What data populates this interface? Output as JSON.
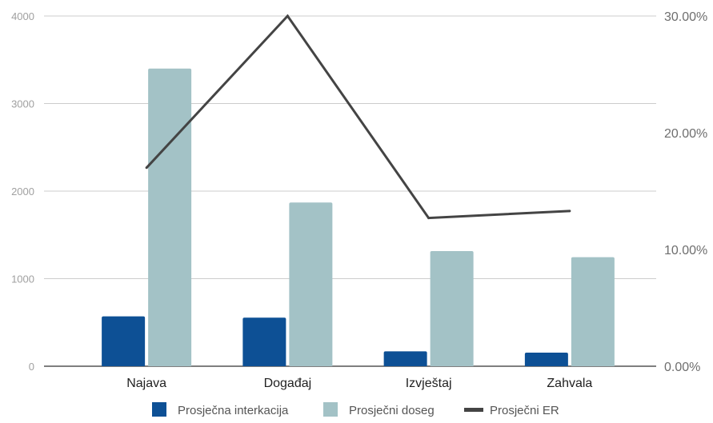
{
  "chart_data": {
    "type": "bar",
    "categories": [
      "Najava",
      "Događaj",
      "Izvještaj",
      "Zahvala"
    ],
    "series": [
      {
        "name": "Prosječna interkacija",
        "kind": "bar",
        "axis": "left",
        "color": "#0d5095",
        "values": [
          570,
          555,
          170,
          155
        ]
      },
      {
        "name": "Prosječni doseg",
        "kind": "bar",
        "axis": "left",
        "color": "#a3c2c6",
        "values": [
          3400,
          1870,
          1315,
          1245
        ]
      },
      {
        "name": "Prosječni ER",
        "kind": "line",
        "axis": "right",
        "color": "#444444",
        "values": [
          0.17,
          0.3,
          0.127,
          0.133
        ]
      }
    ],
    "y_left": {
      "min": 0,
      "max": 4000,
      "ticks": [
        "0",
        "1000",
        "2000",
        "3000",
        "4000"
      ]
    },
    "y_right": {
      "min": 0,
      "max": 0.3,
      "ticks": [
        "0.00%",
        "10.00%",
        "20.00%",
        "30.00%"
      ]
    },
    "grid": true,
    "legend_position": "bottom",
    "title": "",
    "xlabel": "",
    "ylabel": ""
  }
}
